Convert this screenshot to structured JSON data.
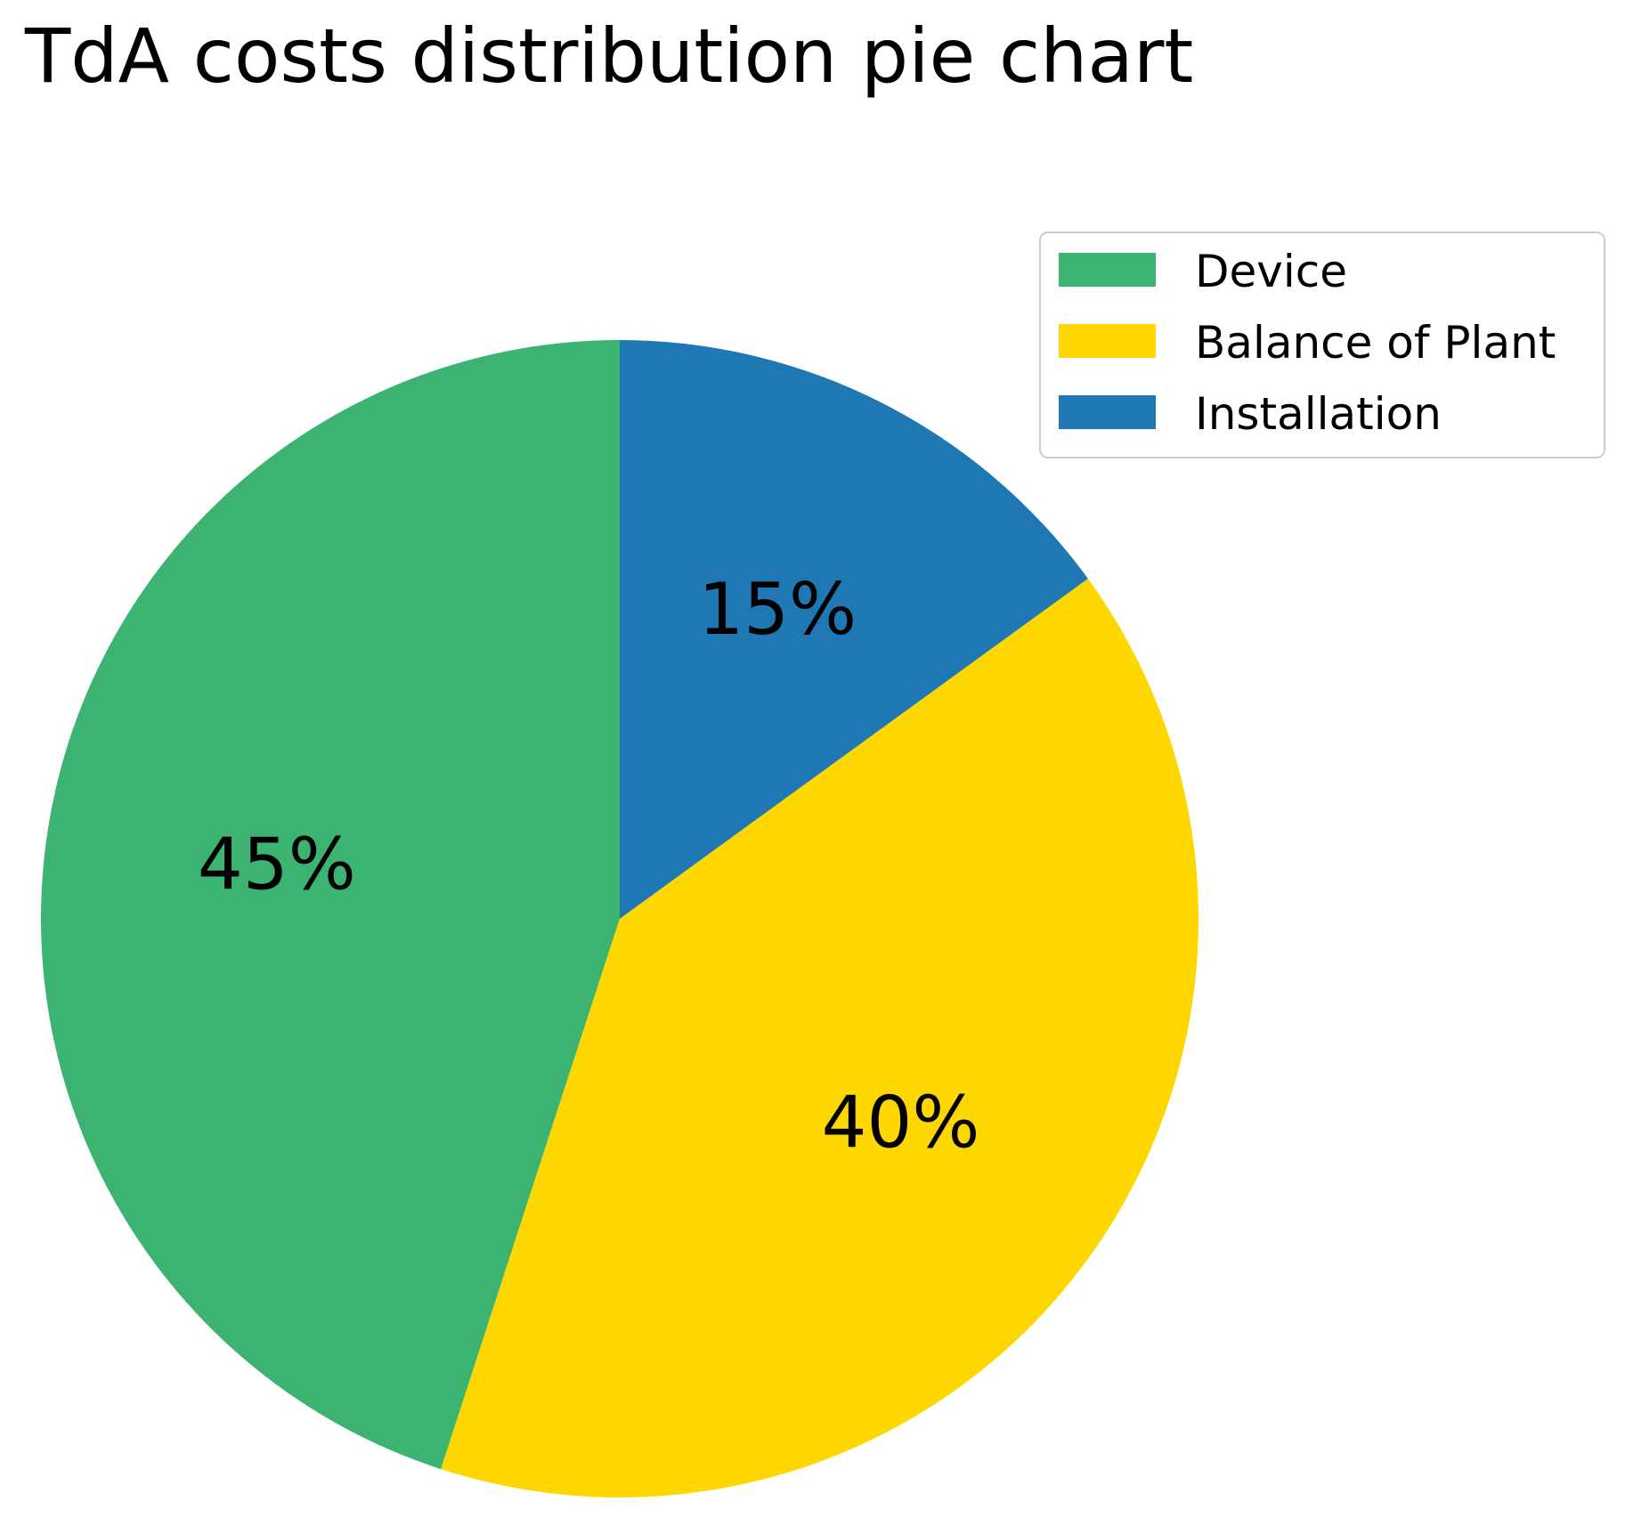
{
  "chart_data": {
    "type": "pie",
    "title": "TdA costs distribution pie chart",
    "categories": [
      "Device",
      "Balance of Plant",
      "Installation"
    ],
    "values": [
      45,
      40,
      15
    ],
    "labels": [
      "45%",
      "40%",
      "15%"
    ],
    "colors": [
      "#3cb371",
      "#ffd700",
      "#1f77b4"
    ],
    "start_angle_deg": 90,
    "direction": "counterclockwise",
    "legend": {
      "position": "top-right",
      "entries": [
        "Device",
        "Balance of Plant",
        "Installation"
      ]
    }
  }
}
